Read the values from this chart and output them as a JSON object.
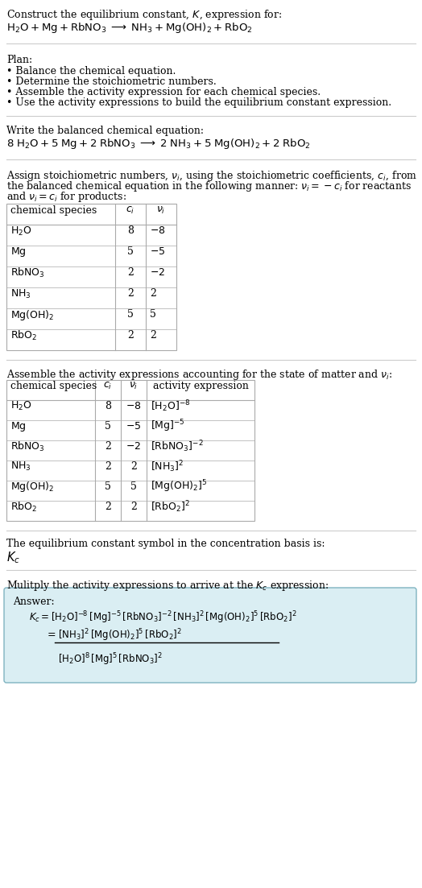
{
  "title_line1": "Construct the equilibrium constant, $K$, expression for:",
  "title_line2": "$\\mathrm{H_2O + Mg + RbNO_3 \\;\\longrightarrow\\; NH_3 + Mg(OH)_2 + RbO_2}$",
  "plan_header": "Plan:",
  "plan_items": [
    "• Balance the chemical equation.",
    "• Determine the stoichiometric numbers.",
    "• Assemble the activity expression for each chemical species.",
    "• Use the activity expressions to build the equilibrium constant expression."
  ],
  "balanced_header": "Write the balanced chemical equation:",
  "balanced_eq": "$\\mathrm{8\\;H_2O + 5\\;Mg + 2\\;RbNO_3 \\;\\longrightarrow\\; 2\\;NH_3 + 5\\;Mg(OH)_2 + 2\\;RbO_2}$",
  "stoich_intro_parts": [
    "Assign stoichiometric numbers, $\\nu_i$, using the stoichiometric coefficients, $c_i$, from",
    "the balanced chemical equation in the following manner: $\\nu_i = -c_i$ for reactants",
    "and $\\nu_i = c_i$ for products:"
  ],
  "table1_headers": [
    "chemical species",
    "$c_i$",
    "$\\nu_i$"
  ],
  "table1_data": [
    [
      "$\\mathrm{H_2O}$",
      "8",
      "$-8$"
    ],
    [
      "$\\mathrm{Mg}$",
      "5",
      "$-5$"
    ],
    [
      "$\\mathrm{RbNO_3}$",
      "2",
      "$-2$"
    ],
    [
      "$\\mathrm{NH_3}$",
      "2",
      "2"
    ],
    [
      "$\\mathrm{Mg(OH)_2}$",
      "5",
      "5"
    ],
    [
      "$\\mathrm{RbO_2}$",
      "2",
      "2"
    ]
  ],
  "activity_intro": "Assemble the activity expressions accounting for the state of matter and $\\nu_i$:",
  "table2_headers": [
    "chemical species",
    "$c_i$",
    "$\\nu_i$",
    "activity expression"
  ],
  "table2_data": [
    [
      "$\\mathrm{H_2O}$",
      "8",
      "$-8$",
      "$[\\mathrm{H_2O}]^{-8}$"
    ],
    [
      "$\\mathrm{Mg}$",
      "5",
      "$-5$",
      "$[\\mathrm{Mg}]^{-5}$"
    ],
    [
      "$\\mathrm{RbNO_3}$",
      "2",
      "$-2$",
      "$[\\mathrm{RbNO_3}]^{-2}$"
    ],
    [
      "$\\mathrm{NH_3}$",
      "2",
      "2",
      "$[\\mathrm{NH_3}]^{2}$"
    ],
    [
      "$\\mathrm{Mg(OH)_2}$",
      "5",
      "5",
      "$[\\mathrm{Mg(OH)_2}]^{5}$"
    ],
    [
      "$\\mathrm{RbO_2}$",
      "2",
      "2",
      "$[\\mathrm{RbO_2}]^{2}$"
    ]
  ],
  "kc_symbol_intro": "The equilibrium constant symbol in the concentration basis is:",
  "kc_symbol": "$K_c$",
  "multiply_intro": "Mulitply the activity expressions to arrive at the $K_c$ expression:",
  "answer_label": "Answer:",
  "answer_line1": "$K_c = [\\mathrm{H_2O}]^{-8}\\,[\\mathrm{Mg}]^{-5}\\,[\\mathrm{RbNO_3}]^{-2}\\,[\\mathrm{NH_3}]^{2}\\,[\\mathrm{Mg(OH)_2}]^{5}\\,[\\mathrm{RbO_2}]^{2}$",
  "answer_eq_lhs": "$=$",
  "answer_line2_num": "$[\\mathrm{NH_3}]^{2}\\,[\\mathrm{Mg(OH)_2}]^{5}\\,[\\mathrm{RbO_2}]^{2}$",
  "answer_line2_den": "$[\\mathrm{H_2O}]^{8}\\,[\\mathrm{Mg}]^{5}\\,[\\mathrm{RbNO_3}]^{2}$",
  "bg_color": "#ffffff",
  "table_line_color": "#aaaaaa",
  "answer_box_bg": "#daeef3",
  "answer_box_border": "#7fb3c0",
  "text_color": "#000000",
  "fs": 9.0,
  "fs_math": 9.5
}
